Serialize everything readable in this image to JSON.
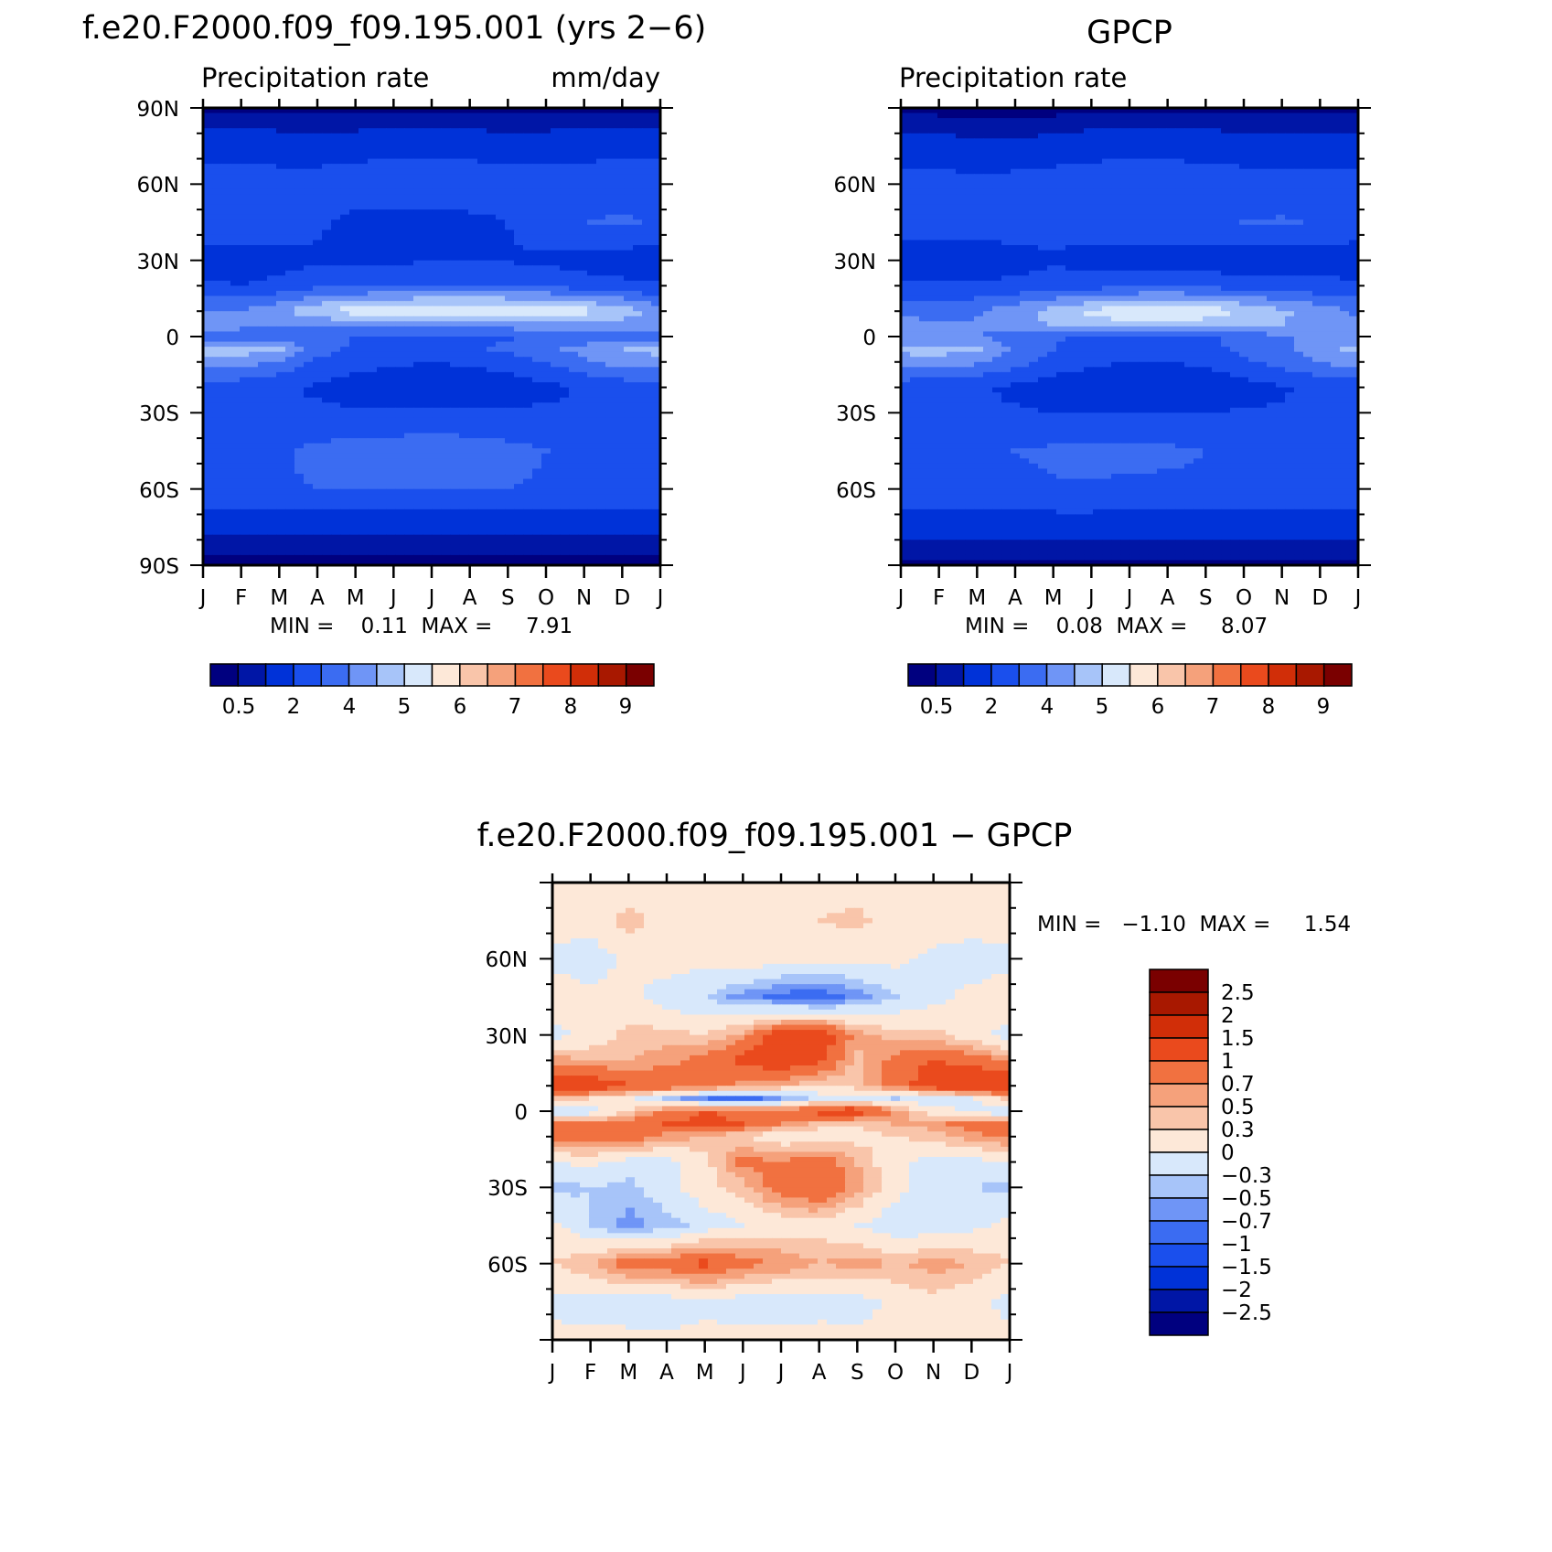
{
  "colors": {
    "abs_scale": [
      "#00007f",
      "#0016a6",
      "#0032d8",
      "#1a4fed",
      "#3b6cf2",
      "#6f95f6",
      "#a7c4f9",
      "#d8e8fb",
      "#fde8d8",
      "#f9c5aa",
      "#f5a17b",
      "#f17140",
      "#ea4a1d",
      "#d12e08",
      "#a81800",
      "#7a0000"
    ],
    "diff_scale": [
      "#00007f",
      "#0016a6",
      "#0032d8",
      "#1a4fed",
      "#3b6cf2",
      "#6f95f6",
      "#a7c4f9",
      "#d8e8fb",
      "#fde8d8",
      "#f9c5aa",
      "#f5a17b",
      "#f17140",
      "#ea4a1d",
      "#d12e08",
      "#a81800",
      "#7a0000"
    ]
  },
  "panels": {
    "model": {
      "title": "f.e20.F2000.f09_f09.195.001 (yrs 2−6)",
      "left_label": "Precipitation rate",
      "right_label": "mm/day",
      "minmax": "MIN =    0.11  MAX =     7.91",
      "lat_labels": [
        "90N",
        "60N",
        "30N",
        "0",
        "30S",
        "60S",
        "90S"
      ],
      "month_labels": [
        "J",
        "F",
        "M",
        "A",
        "M",
        "J",
        "J",
        "A",
        "S",
        "O",
        "N",
        "D",
        "J"
      ],
      "colorbar_labels": [
        "0.5",
        "2",
        "4",
        "5",
        "6",
        "7",
        "8",
        "9"
      ]
    },
    "obs": {
      "title": "GPCP",
      "left_label": "Precipitation rate",
      "minmax": "MIN =    0.08  MAX =     8.07",
      "lat_labels": [
        "60N",
        "30N",
        "0",
        "30S",
        "60S"
      ],
      "month_labels": [
        "J",
        "F",
        "M",
        "A",
        "M",
        "J",
        "J",
        "A",
        "S",
        "O",
        "N",
        "D",
        "J"
      ],
      "colorbar_labels": [
        "0.5",
        "2",
        "4",
        "5",
        "6",
        "7",
        "8",
        "9"
      ]
    },
    "diff": {
      "title": "f.e20.F2000.f09_f09.195.001 − GPCP",
      "minmax": "MIN =   −1.10  MAX =     1.54",
      "lat_labels": [
        "60N",
        "30N",
        "0",
        "30S",
        "60S"
      ],
      "month_labels": [
        "J",
        "F",
        "M",
        "A",
        "M",
        "J",
        "J",
        "A",
        "S",
        "O",
        "N",
        "D",
        "J"
      ],
      "colorbar_labels": [
        "2.5",
        "2",
        "1.5",
        "1",
        "0.7",
        "0.5",
        "0.3",
        "0",
        "−0.3",
        "−0.5",
        "−0.7",
        "−1",
        "−1.5",
        "−2",
        "−2.5"
      ]
    }
  },
  "chart_data": [
    {
      "type": "heatmap",
      "title": "f.e20.F2000.f09_f09.195.001 (yrs 2−6)",
      "subtitle": "Precipitation rate",
      "units": "mm/day",
      "x": [
        "J",
        "F",
        "M",
        "A",
        "M",
        "J",
        "J",
        "A",
        "S",
        "O",
        "N",
        "D",
        "J"
      ],
      "y": [
        90,
        75,
        60,
        45,
        30,
        20,
        10,
        5,
        0,
        -5,
        -10,
        -20,
        -30,
        -45,
        -60,
        -75,
        -90
      ],
      "ylim": [
        -90,
        90
      ],
      "levels": [
        0.5,
        1,
        2,
        3,
        4,
        5,
        6,
        7,
        8,
        9,
        10,
        12,
        13,
        14,
        15
      ],
      "min": 0.11,
      "max": 7.91,
      "z": [
        [
          0.4,
          0.4,
          0.4,
          0.4,
          0.4,
          0.4,
          0.4,
          0.4,
          0.4,
          0.4,
          0.4,
          0.4,
          0.4
        ],
        [
          1.6,
          1.5,
          1.4,
          1.3,
          1.4,
          1.5,
          1.5,
          1.5,
          1.3,
          1.4,
          1.5,
          1.6,
          1.6
        ],
        [
          2.6,
          2.6,
          2.5,
          2.6,
          2.8,
          2.9,
          2.8,
          2.8,
          2.7,
          2.7,
          2.7,
          2.7,
          2.6
        ],
        [
          2.9,
          2.8,
          2.6,
          2.2,
          1.6,
          1.5,
          1.6,
          1.7,
          2.0,
          2.6,
          3.0,
          3.1,
          2.9
        ],
        [
          1.4,
          1.3,
          1.6,
          1.8,
          1.8,
          1.8,
          2.0,
          2.0,
          1.9,
          1.8,
          1.6,
          1.5,
          1.4
        ],
        [
          2.2,
          2.0,
          2.3,
          2.7,
          2.8,
          2.9,
          3.0,
          3.1,
          3.0,
          2.8,
          2.4,
          2.2,
          2.2
        ],
        [
          4.2,
          4.1,
          4.8,
          5.9,
          6.6,
          6.9,
          7.2,
          7.2,
          7.0,
          6.8,
          6.4,
          5.8,
          4.2
        ],
        [
          4.6,
          4.3,
          4.2,
          4.2,
          4.4,
          4.4,
          4.5,
          4.6,
          4.7,
          4.8,
          4.7,
          4.6,
          4.6
        ],
        [
          3.4,
          3.5,
          3.4,
          3.2,
          3.0,
          2.9,
          2.8,
          2.8,
          2.9,
          3.1,
          3.4,
          3.5,
          3.4
        ],
        [
          5.4,
          5.6,
          5.3,
          3.4,
          2.8,
          2.6,
          2.6,
          2.8,
          3.2,
          3.8,
          4.3,
          5.0,
          5.4
        ],
        [
          4.6,
          4.4,
          3.8,
          2.8,
          2.4,
          2.2,
          2.0,
          2.2,
          2.4,
          3.1,
          3.8,
          4.4,
          4.6
        ],
        [
          2.5,
          2.4,
          2.2,
          1.8,
          1.4,
          1.2,
          1.2,
          1.2,
          1.4,
          1.7,
          2.1,
          2.4,
          2.5
        ],
        [
          2.3,
          2.3,
          2.2,
          2.2,
          2.2,
          2.2,
          2.2,
          2.2,
          2.1,
          2.2,
          2.2,
          2.3,
          2.3
        ],
        [
          2.7,
          2.8,
          2.9,
          3.2,
          3.4,
          3.5,
          3.6,
          3.5,
          3.3,
          3.0,
          2.8,
          2.7,
          2.7
        ],
        [
          2.8,
          2.8,
          2.9,
          3.0,
          3.1,
          3.1,
          3.1,
          3.1,
          3.0,
          2.9,
          2.8,
          2.8,
          2.8
        ],
        [
          1.2,
          1.2,
          1.2,
          1.2,
          1.2,
          1.2,
          1.2,
          1.2,
          1.2,
          1.2,
          1.2,
          1.2,
          1.2
        ],
        [
          0.3,
          0.3,
          0.3,
          0.3,
          0.3,
          0.3,
          0.3,
          0.3,
          0.3,
          0.3,
          0.3,
          0.3,
          0.3
        ]
      ]
    },
    {
      "type": "heatmap",
      "title": "GPCP",
      "subtitle": "Precipitation rate",
      "x": [
        "J",
        "F",
        "M",
        "A",
        "M",
        "J",
        "J",
        "A",
        "S",
        "O",
        "N",
        "D",
        "J"
      ],
      "y": [
        90,
        75,
        60,
        45,
        30,
        20,
        10,
        5,
        0,
        -5,
        -10,
        -20,
        -30,
        -45,
        -60,
        -75,
        -90
      ],
      "ylim": [
        -90,
        90
      ],
      "levels": [
        0.5,
        1,
        2,
        3,
        4,
        5,
        6,
        7,
        8,
        9,
        10,
        12,
        13,
        14,
        15
      ],
      "min": 0.08,
      "max": 8.07,
      "z": [
        [
          0.3,
          0.3,
          0.3,
          0.3,
          0.3,
          0.3,
          0.3,
          0.3,
          0.3,
          0.3,
          0.3,
          0.3,
          0.3
        ],
        [
          1.3,
          1.3,
          1.2,
          1.2,
          1.3,
          1.5,
          1.6,
          1.6,
          1.5,
          1.4,
          1.3,
          1.3,
          1.3
        ],
        [
          2.4,
          2.4,
          2.3,
          2.4,
          2.6,
          2.7,
          2.7,
          2.7,
          2.6,
          2.5,
          2.5,
          2.4,
          2.4
        ],
        [
          2.6,
          2.5,
          2.6,
          2.6,
          2.5,
          2.4,
          2.5,
          2.6,
          2.8,
          3.0,
          3.1,
          2.9,
          2.6
        ],
        [
          1.4,
          1.3,
          1.3,
          1.6,
          1.8,
          1.7,
          1.6,
          1.5,
          1.4,
          1.4,
          1.4,
          1.4,
          1.4
        ],
        [
          2.2,
          2.1,
          2.1,
          2.3,
          2.5,
          2.6,
          2.8,
          2.9,
          2.7,
          2.5,
          2.4,
          2.3,
          2.2
        ],
        [
          3.8,
          3.7,
          3.9,
          4.5,
          5.4,
          6.2,
          6.7,
          6.9,
          6.6,
          6.0,
          5.2,
          4.5,
          3.8
        ],
        [
          4.3,
          4.0,
          4.1,
          4.6,
          5.1,
          5.5,
          5.8,
          5.8,
          5.6,
          5.3,
          5.0,
          4.7,
          4.3
        ],
        [
          4.5,
          4.2,
          4.0,
          3.6,
          3.1,
          2.8,
          2.6,
          2.6,
          2.8,
          3.3,
          3.9,
          4.3,
          4.5
        ],
        [
          5.3,
          5.5,
          5.1,
          3.8,
          3.0,
          2.6,
          2.4,
          2.4,
          2.7,
          3.2,
          3.8,
          4.6,
          5.3
        ],
        [
          4.5,
          4.4,
          4.2,
          3.4,
          2.6,
          2.2,
          2.0,
          2.0,
          2.2,
          2.8,
          3.4,
          4.0,
          4.5
        ],
        [
          2.4,
          2.2,
          2.1,
          1.8,
          1.4,
          1.2,
          1.1,
          1.0,
          1.2,
          1.5,
          1.9,
          2.2,
          2.4
        ],
        [
          2.2,
          2.2,
          2.2,
          2.1,
          2.0,
          2.0,
          2.0,
          2.0,
          2.0,
          2.1,
          2.1,
          2.2,
          2.2
        ],
        [
          2.6,
          2.7,
          2.8,
          3.0,
          3.2,
          3.3,
          3.3,
          3.2,
          3.0,
          2.8,
          2.7,
          2.6,
          2.6
        ],
        [
          2.7,
          2.7,
          2.8,
          2.8,
          2.9,
          2.9,
          2.8,
          2.8,
          2.8,
          2.7,
          2.7,
          2.7,
          2.7
        ],
        [
          1.4,
          1.4,
          1.4,
          1.4,
          1.4,
          1.4,
          1.4,
          1.4,
          1.4,
          1.4,
          1.4,
          1.4,
          1.4
        ],
        [
          0.3,
          0.3,
          0.3,
          0.3,
          0.3,
          0.3,
          0.3,
          0.3,
          0.3,
          0.3,
          0.3,
          0.3,
          0.3
        ]
      ]
    },
    {
      "type": "heatmap",
      "title": "f.e20.F2000.f09_f09.195.001 − GPCP",
      "x": [
        "J",
        "F",
        "M",
        "A",
        "M",
        "J",
        "J",
        "A",
        "S",
        "O",
        "N",
        "D",
        "J"
      ],
      "y": [
        90,
        75,
        60,
        45,
        30,
        20,
        10,
        5,
        0,
        -5,
        -10,
        -20,
        -30,
        -45,
        -60,
        -75,
        -90
      ],
      "ylim": [
        -90,
        90
      ],
      "levels": [
        -2.5,
        -2,
        -1.5,
        -1,
        -0.7,
        -0.5,
        -0.3,
        0,
        0.3,
        0.5,
        0.7,
        1,
        1.5,
        2,
        2.5
      ],
      "min": -1.1,
      "max": 1.54,
      "z": [
        [
          0.1,
          0.1,
          0.15,
          0.1,
          0.1,
          0.1,
          0.1,
          0.15,
          0.1,
          0.1,
          0.1,
          0.1,
          0.1
        ],
        [
          0.2,
          0.15,
          0.4,
          0.2,
          0.15,
          0.2,
          0.1,
          0.3,
          0.4,
          0.15,
          0.2,
          0.2,
          0.2
        ],
        [
          -0.1,
          -0.2,
          0.1,
          0.2,
          0.1,
          0.3,
          0.1,
          0.1,
          0.05,
          0.1,
          -0.1,
          -0.2,
          -0.1
        ],
        [
          0.2,
          0.1,
          0.1,
          -0.2,
          -0.3,
          -0.6,
          -0.8,
          -0.9,
          -0.6,
          -0.3,
          -0.1,
          0.1,
          0.2
        ],
        [
          -0.1,
          0.1,
          0.4,
          0.4,
          0.3,
          0.6,
          1.2,
          1.3,
          0.6,
          0.4,
          0.4,
          0.1,
          -0.1
        ],
        [
          0.6,
          0.5,
          0.5,
          0.6,
          0.8,
          1.1,
          1.3,
          1.1,
          0.4,
          0.8,
          1.0,
          0.9,
          0.6
        ],
        [
          1.4,
          1.3,
          1.0,
          1.0,
          0.9,
          0.6,
          0.5,
          0.3,
          0.4,
          0.8,
          1.3,
          1.4,
          1.4
        ],
        [
          0.4,
          0.3,
          0.1,
          -0.4,
          -0.7,
          -0.9,
          -0.5,
          -0.2,
          -0.1,
          -0.3,
          -0.2,
          0.0,
          0.4
        ],
        [
          -0.3,
          -0.2,
          0.3,
          0.8,
          1.0,
          0.9,
          0.8,
          1.2,
          1.3,
          0.6,
          0.2,
          -0.1,
          -0.3
        ],
        [
          0.8,
          0.8,
          0.9,
          1.0,
          1.1,
          1.0,
          0.7,
          0.4,
          0.3,
          0.5,
          0.6,
          0.9,
          0.8
        ],
        [
          0.8,
          0.9,
          0.9,
          0.6,
          0.5,
          0.3,
          0.1,
          0.1,
          0.2,
          0.3,
          0.4,
          0.6,
          0.8
        ],
        [
          0.0,
          0.1,
          -0.1,
          -0.1,
          0.2,
          0.8,
          0.7,
          0.9,
          0.5,
          0.1,
          -0.1,
          -0.1,
          0.0
        ],
        [
          -0.4,
          -0.3,
          -0.4,
          -0.1,
          0.2,
          0.4,
          0.9,
          1.0,
          0.6,
          0.1,
          -0.2,
          -0.3,
          -0.4
        ],
        [
          0.1,
          -0.3,
          -0.6,
          -0.4,
          -0.2,
          0.0,
          0.1,
          0.2,
          0.0,
          -0.2,
          -0.2,
          -0.1,
          0.1
        ],
        [
          0.3,
          0.5,
          0.9,
          0.9,
          1.1,
          0.8,
          0.7,
          0.5,
          0.6,
          0.5,
          0.6,
          0.5,
          0.3
        ],
        [
          -0.1,
          -0.15,
          -0.2,
          -0.15,
          -0.1,
          -0.15,
          -0.2,
          -0.1,
          -0.15,
          0.1,
          0.2,
          0.1,
          -0.1
        ],
        [
          0.1,
          0.1,
          0.1,
          0.05,
          0.1,
          0.1,
          0.1,
          0.1,
          0.1,
          0.1,
          0.1,
          0.1,
          0.1
        ]
      ]
    }
  ]
}
